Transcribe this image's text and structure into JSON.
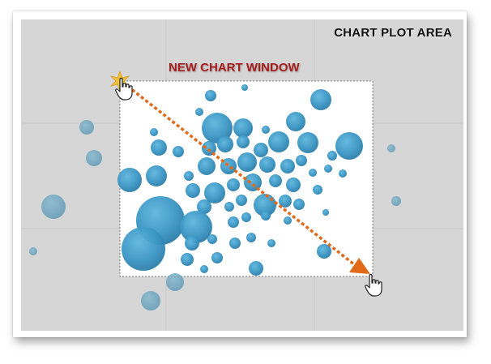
{
  "labels": {
    "plot_area": "CHART PLOT AREA",
    "new_window": "NEW CHART WINDOW"
  },
  "colors": {
    "plot_area_bg": "#d6d6d6",
    "window_bg": "#ffffff",
    "bubble": "#3a96c4",
    "arrow": "#e06a1a",
    "window_label": "#a71d1d"
  },
  "icons": [
    "hand-cursor-icon",
    "starburst-icon",
    "arrowhead-icon"
  ]
}
